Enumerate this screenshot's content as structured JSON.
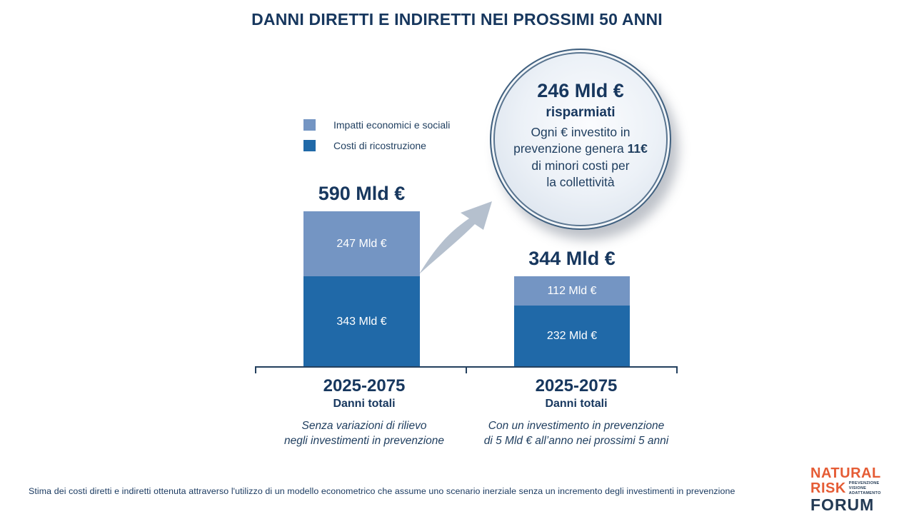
{
  "title": "DANNI DIRETTI E INDIRETTI NEI PROSSIMI 50 ANNI",
  "chart_data": {
    "type": "bar",
    "stacked": true,
    "unit": "Mld €",
    "categories": [
      "2025-2075",
      "2025-2075"
    ],
    "category_sublabels": [
      "Danni totali",
      "Danni totali"
    ],
    "series": [
      {
        "name": "Impatti economici e sociali",
        "color": "#7495C3",
        "values": [
          247,
          112
        ],
        "labels": [
          "247 Mld €",
          "112 Mld €"
        ]
      },
      {
        "name": "Costi di ricostruzione",
        "color": "#2069A8",
        "values": [
          343,
          232
        ],
        "labels": [
          "343 Mld €",
          "232 Mld €"
        ]
      }
    ],
    "totals": [
      590,
      344
    ],
    "total_labels": [
      "590 Mld €",
      "344 Mld €"
    ],
    "descriptions": [
      [
        "Senza variazioni di rilievo",
        "negli investimenti in prevenzione"
      ],
      [
        "Con un investimento in prevenzione",
        "di 5 Mld € all’anno nei prossimi 5 anni"
      ]
    ],
    "legend_position": "upper-left",
    "grid": false,
    "ylim": [
      0,
      590
    ]
  },
  "legend": [
    {
      "label": "Impatti economici e sociali"
    },
    {
      "label": "Costi di ricostruzione"
    }
  ],
  "badge": {
    "headline": "246 Mld €",
    "subhead": "risparmiati",
    "line1": "Ogni € investito in",
    "line2_regular": "prevenzione genera ",
    "line2_bold": "11€",
    "line3": "di minori costi per",
    "line4": "la collettività"
  },
  "footnote": "Stima dei costi diretti e indiretti ottenuta attraverso l'utilizzo di un modello econometrico che assume uno scenario inerziale senza un incremento degli investimenti in prevenzione",
  "logo": {
    "word1": "NATURAL",
    "word2": "RISK",
    "word3": "FORUM",
    "tagline": [
      "PREVENZIONE",
      "VISIONE",
      "ADATTAMENTO"
    ]
  },
  "colors": {
    "title_navy": "#17375E",
    "body_navy": "#1E3D5E",
    "bar_light": "#7495C3",
    "bar_dark": "#2069A8",
    "axis": "#24405E",
    "arrow": "#B5C0CE",
    "logo_orange": "#E55C35",
    "logo_navy": "#233A54"
  }
}
